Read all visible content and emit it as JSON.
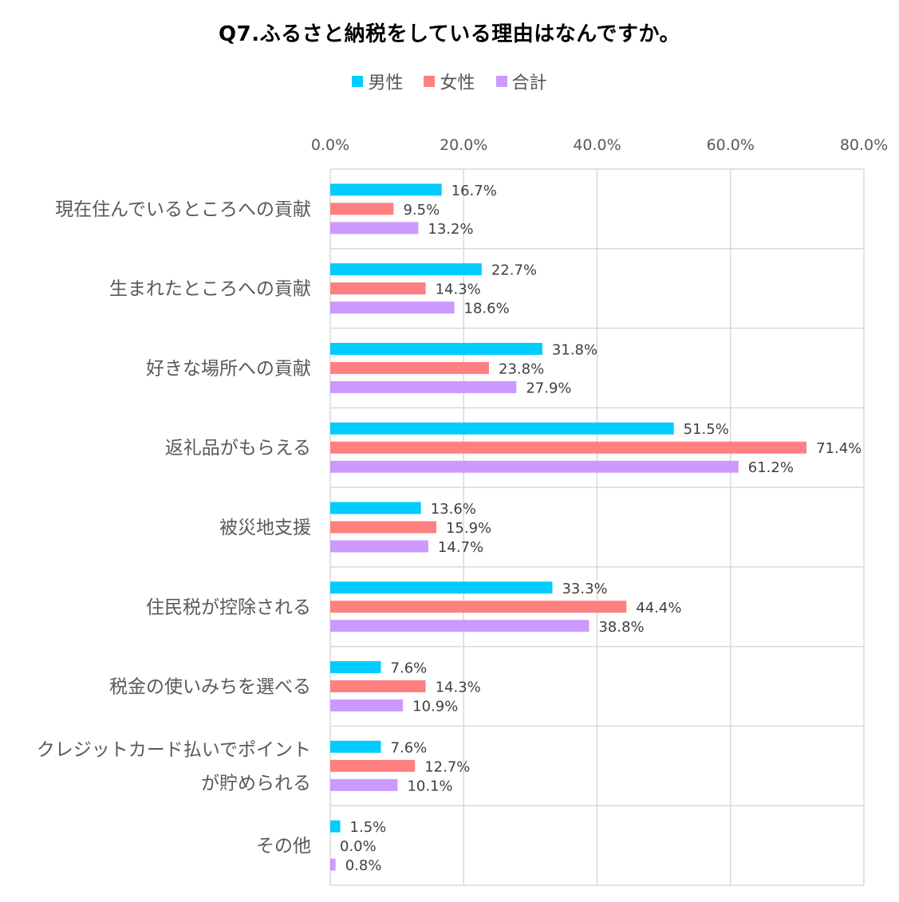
{
  "chart_data": {
    "type": "bar",
    "orientation": "horizontal",
    "title": "Q7.ふるさと納税をしている理由はなんですか。",
    "xlabel": "",
    "ylabel": "",
    "xlim": [
      0,
      80
    ],
    "x_ticks": [
      "0.0%",
      "20.0%",
      "40.0%",
      "60.0%",
      "80.0%"
    ],
    "x_tick_values": [
      0,
      20,
      40,
      60,
      80
    ],
    "grid": true,
    "legend_position": "top",
    "categories": [
      "現在住んでいるところへの貢献",
      "生まれたところへの貢献",
      "好きな場所への貢献",
      "返礼品がもらえる",
      "被災地支援",
      "住民税が控除される",
      "税金の使いみちを選べる",
      "クレジットカード払いでポイントが貯められる",
      "その他"
    ],
    "category_lines": [
      [
        "現在住んでいるところへの貢献"
      ],
      [
        "生まれたところへの貢献"
      ],
      [
        "好きな場所への貢献"
      ],
      [
        "返礼品がもらえる"
      ],
      [
        "被災地支援"
      ],
      [
        "住民税が控除される"
      ],
      [
        "税金の使いみちを選べる"
      ],
      [
        "クレジットカード払いでポイント",
        "が貯められる"
      ],
      [
        "その他"
      ]
    ],
    "series": [
      {
        "name": "男性",
        "color": "#00CCFF",
        "values": [
          16.7,
          22.7,
          31.8,
          51.5,
          13.6,
          33.3,
          7.6,
          7.6,
          1.5
        ],
        "labels": [
          "16.7%",
          "22.7%",
          "31.8%",
          "51.5%",
          "13.6%",
          "33.3%",
          "7.6%",
          "7.6%",
          "1.5%"
        ]
      },
      {
        "name": "女性",
        "color": "#FF8080",
        "values": [
          9.5,
          14.3,
          23.8,
          71.4,
          15.9,
          44.4,
          14.3,
          12.7,
          0.0
        ],
        "labels": [
          "9.5%",
          "14.3%",
          "23.8%",
          "71.4%",
          "15.9%",
          "44.4%",
          "14.3%",
          "12.7%",
          "0.0%"
        ]
      },
      {
        "name": "合計",
        "color": "#CC99FF",
        "values": [
          13.2,
          18.6,
          27.9,
          61.2,
          14.7,
          38.8,
          10.9,
          10.1,
          0.8
        ],
        "labels": [
          "13.2%",
          "18.6%",
          "27.9%",
          "61.2%",
          "14.7%",
          "38.8%",
          "10.9%",
          "10.1%",
          "0.8%"
        ]
      }
    ]
  }
}
